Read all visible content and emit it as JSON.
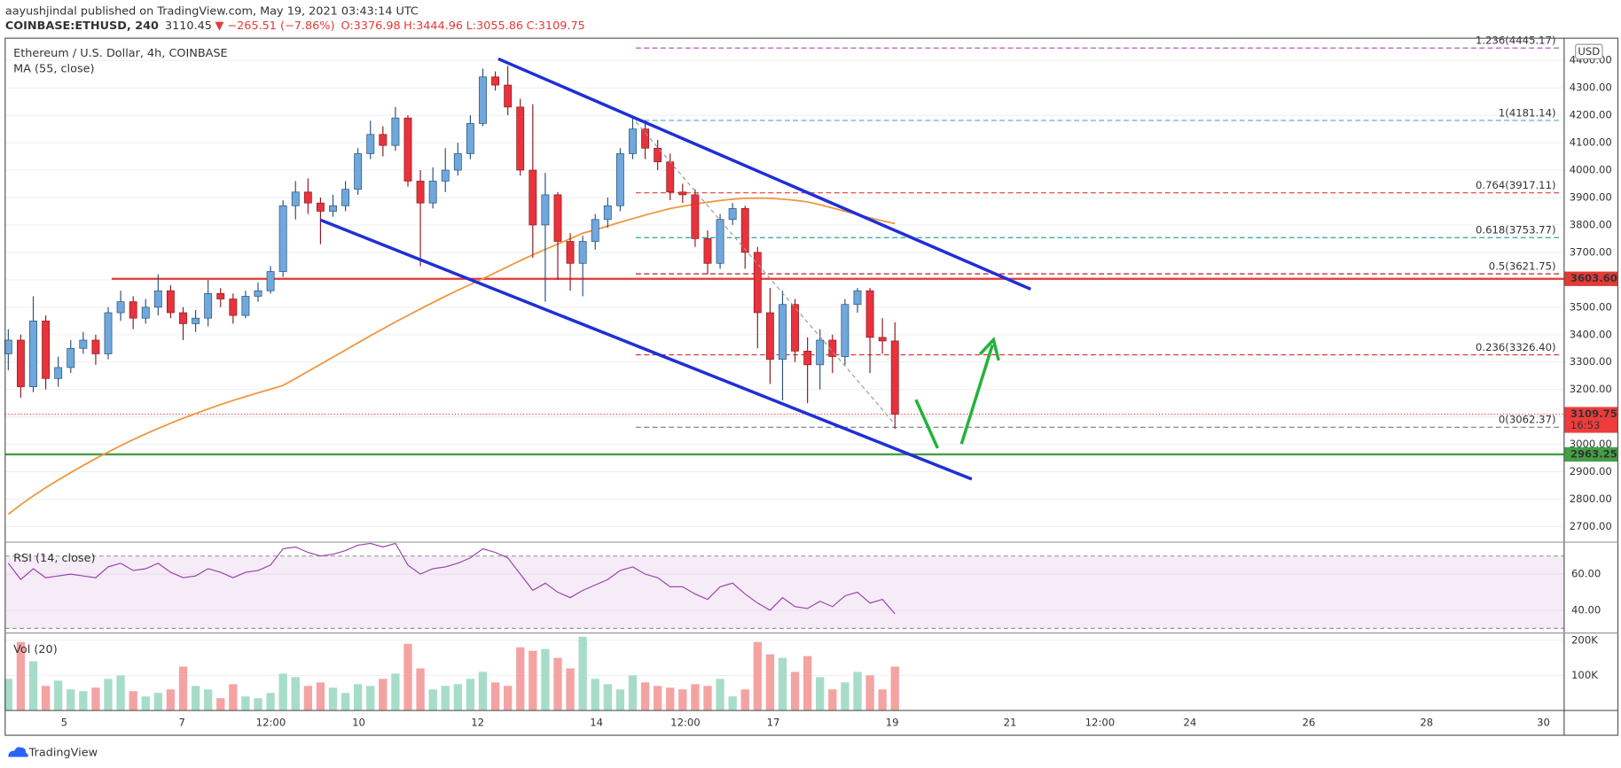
{
  "header": {
    "publisher": "aayushjindal published on TradingView.com, May 19, 2021 03:43:14 UTC",
    "symbol": "COINBASE:ETHUSD, 240",
    "last": "3110.45",
    "change": "▼ −265.51 (−7.86%)",
    "open": "O:3376.98",
    "high": "H:3444.96",
    "low": "L:3055.86",
    "close": "C:3109.75"
  },
  "chart_data": {
    "type": "candlestick",
    "title": "Ethereum / U.S. Dollar, 4h, COINBASE",
    "currency": "USD",
    "up_color": "#6fa8dc",
    "down_color": "#e8323c",
    "open": [
      3330,
      3380,
      3210,
      3450,
      3240,
      3280,
      3350,
      3380,
      3330,
      3480,
      3520,
      3460,
      3500,
      3560,
      3480,
      3440,
      3460,
      3550,
      3530,
      3470,
      3540,
      3560,
      3630,
      3870,
      3920,
      3880,
      3850,
      3870,
      3930,
      4060,
      4130,
      4090,
      4190,
      3960,
      3880,
      3960,
      4000,
      4060,
      4170,
      4340,
      4310,
      4230,
      4000,
      3800,
      3910,
      3740,
      3660,
      3740,
      3820,
      3870,
      4060,
      4150,
      4080,
      4030,
      3920,
      3910,
      3750,
      3660,
      3820,
      3860,
      3700,
      3480,
      3310,
      3510,
      3340,
      3290,
      3380,
      3320,
      3510,
      3560,
      3390,
      3377
    ],
    "high": [
      3420,
      3400,
      3540,
      3470,
      3320,
      3380,
      3410,
      3400,
      3500,
      3560,
      3540,
      3530,
      3620,
      3580,
      3500,
      3490,
      3600,
      3570,
      3550,
      3560,
      3590,
      3650,
      3890,
      3960,
      3970,
      3900,
      3910,
      3960,
      4080,
      4180,
      4160,
      4230,
      4200,
      4000,
      4010,
      4080,
      4100,
      4200,
      4370,
      4360,
      4380,
      4260,
      4240,
      3990,
      3920,
      3770,
      3760,
      3840,
      3900,
      4080,
      4190,
      4170,
      4110,
      4060,
      3950,
      3930,
      3780,
      3840,
      3880,
      3870,
      3720,
      3570,
      3560,
      3530,
      3390,
      3420,
      3400,
      3530,
      3570,
      3570,
      3460,
      3445
    ],
    "low": [
      3270,
      3170,
      3190,
      3200,
      3210,
      3260,
      3330,
      3290,
      3310,
      3450,
      3420,
      3440,
      3470,
      3460,
      3380,
      3410,
      3430,
      3500,
      3440,
      3460,
      3520,
      3550,
      3610,
      3820,
      3840,
      3730,
      3830,
      3850,
      3910,
      4040,
      4050,
      4070,
      3940,
      3650,
      3860,
      3920,
      3980,
      4040,
      4160,
      4290,
      4200,
      3980,
      3680,
      3520,
      3600,
      3560,
      3540,
      3710,
      3790,
      3850,
      4040,
      4040,
      4000,
      3890,
      3880,
      3720,
      3620,
      3640,
      3800,
      3640,
      3350,
      3220,
      3160,
      3300,
      3150,
      3200,
      3260,
      3290,
      3480,
      3260,
      3330,
      3056
    ],
    "close": [
      3380,
      3210,
      3450,
      3240,
      3280,
      3350,
      3380,
      3330,
      3480,
      3520,
      3460,
      3500,
      3560,
      3480,
      3440,
      3460,
      3550,
      3530,
      3470,
      3540,
      3560,
      3630,
      3870,
      3920,
      3880,
      3850,
      3870,
      3930,
      4060,
      4130,
      4090,
      4190,
      3960,
      3880,
      3960,
      4000,
      4060,
      4170,
      4340,
      4310,
      4230,
      4000,
      3800,
      3910,
      3740,
      3660,
      3740,
      3820,
      3870,
      4060,
      4150,
      4080,
      4030,
      3920,
      3910,
      3750,
      3660,
      3820,
      3860,
      3700,
      3480,
      3310,
      3510,
      3340,
      3290,
      3380,
      3320,
      3510,
      3560,
      3390,
      3377,
      3110
    ],
    "ma": {
      "name": "MA (55, close)",
      "color": "#f0953a",
      "values": [
        2745,
        2780,
        2812,
        2842,
        2870,
        2897,
        2923,
        2948,
        2972,
        2995,
        3017,
        3038,
        3058,
        3077,
        3095,
        3112,
        3129,
        3145,
        3160,
        3174,
        3188,
        3201,
        3215,
        3240,
        3266,
        3292,
        3318,
        3344,
        3370,
        3396,
        3421,
        3446,
        3470,
        3494,
        3517,
        3540,
        3562,
        3583,
        3604,
        3626,
        3648,
        3670,
        3691,
        3711,
        3730,
        3750,
        3770,
        3782,
        3796,
        3810,
        3823,
        3836,
        3848,
        3860,
        3868,
        3876,
        3883,
        3889,
        3894,
        3897,
        3898,
        3897,
        3894,
        3890,
        3884,
        3874,
        3862,
        3850,
        3838,
        3826,
        3815,
        3805
      ]
    },
    "ylim": [
      2647,
      4481
    ],
    "yticks": [
      {
        "value": 2700,
        "label": "2700.00"
      },
      {
        "value": 2800,
        "label": "2800.00"
      },
      {
        "value": 2900,
        "label": "2900.00"
      },
      {
        "value": 3000,
        "label": "3000.00"
      },
      {
        "value": 3100,
        "label": "3100.00"
      },
      {
        "value": 3200,
        "label": "3200.00"
      },
      {
        "value": 3300,
        "label": "3300.00"
      },
      {
        "value": 3400,
        "label": "3400.00"
      },
      {
        "value": 3500,
        "label": "3500.00"
      },
      {
        "value": 3600,
        "label": "3600.00"
      },
      {
        "value": 3700,
        "label": "3700.00"
      },
      {
        "value": 3800,
        "label": "3800.00"
      },
      {
        "value": 3900,
        "label": "3900.00"
      },
      {
        "value": 4000,
        "label": "4000.00"
      },
      {
        "value": 4100,
        "label": "4100.00"
      },
      {
        "value": 4200,
        "label": "4200.00"
      },
      {
        "value": 4300,
        "label": "4300.00"
      },
      {
        "value": 4400,
        "label": "4400.00"
      }
    ],
    "x_tick_labels": [
      "5",
      "7",
      "12:00",
      "10",
      "12",
      "14",
      "12:00",
      "17",
      "19",
      "21",
      "12:00",
      "24",
      "26",
      "28",
      "30"
    ],
    "levels": [
      {
        "value": 3603.6,
        "label": "3603.60",
        "color": "#e53935"
      },
      {
        "value": 2963.25,
        "label": "2963.25",
        "color": "#43a047"
      }
    ],
    "last_price": {
      "value": 3109.75,
      "label": "3109.75",
      "countdown": "16:53",
      "color": "#ef3b3b"
    },
    "fib": [
      {
        "value": 4445.17,
        "label": "1.236(4445.17)",
        "color": "#ab47bc"
      },
      {
        "value": 4181.14,
        "label": "1(4181.14)",
        "color": "#4fa3d8"
      },
      {
        "value": 3917.11,
        "label": "0.764(3917.11)",
        "color": "#e53935"
      },
      {
        "value": 3753.77,
        "label": "0.618(3753.77)",
        "color": "#26a69a"
      },
      {
        "value": 3621.75,
        "label": "0.5(3621.75)",
        "color": "#b71c1c"
      },
      {
        "value": 3326.4,
        "label": "0.236(3326.40)",
        "color": "#d32f2f"
      },
      {
        "value": 3062.37,
        "label": "0(3062.37)",
        "color": "#787b86"
      }
    ]
  },
  "rsi": {
    "name": "RSI (14, close)",
    "color": "#9c40b0",
    "values": [
      66,
      57,
      63,
      58,
      59,
      60,
      59,
      58,
      64,
      66,
      62,
      63,
      66,
      61,
      58,
      59,
      63,
      61,
      58,
      61,
      62,
      65,
      74,
      75,
      72,
      70,
      71,
      73,
      76,
      77,
      75,
      77,
      65,
      60,
      63,
      64,
      66,
      69,
      74,
      72,
      69,
      60,
      51,
      55,
      50,
      47,
      51,
      54,
      57,
      62,
      64,
      60,
      58,
      53,
      53,
      49,
      46,
      53,
      55,
      49,
      44,
      40,
      47,
      42,
      41,
      45,
      42,
      48,
      50,
      44,
      46,
      38
    ],
    "ylim": [
      28,
      77.1
    ],
    "band": [
      30,
      70
    ],
    "yticks": [
      {
        "value": 60,
        "label": "60.00"
      },
      {
        "value": 40,
        "label": "40.00"
      }
    ]
  },
  "volume": {
    "name": "Vol (20)",
    "up_color": "#a7dcc9",
    "down_color": "#f4a3a3",
    "values": [
      90000,
      195000,
      140000,
      70000,
      85000,
      60000,
      55000,
      65000,
      90000,
      100000,
      55000,
      40000,
      50000,
      60000,
      125000,
      70000,
      60000,
      35000,
      75000,
      40000,
      35000,
      50000,
      105000,
      95000,
      70000,
      80000,
      65000,
      50000,
      75000,
      70000,
      90000,
      105000,
      190000,
      120000,
      60000,
      70000,
      75000,
      90000,
      110000,
      80000,
      70000,
      180000,
      170000,
      175000,
      150000,
      120000,
      210000,
      90000,
      75000,
      60000,
      100000,
      80000,
      70000,
      65000,
      60000,
      75000,
      70000,
      90000,
      40000,
      60000,
      195000,
      160000,
      150000,
      110000,
      155000,
      95000,
      60000,
      80000,
      110000,
      100000,
      60000,
      125000
    ],
    "ylim": [
      0,
      217600
    ],
    "yticks": [
      {
        "value": 200000,
        "label": "200K"
      },
      {
        "value": 100000,
        "label": "100K"
      }
    ]
  },
  "footer": {
    "brand": "TradingView"
  }
}
